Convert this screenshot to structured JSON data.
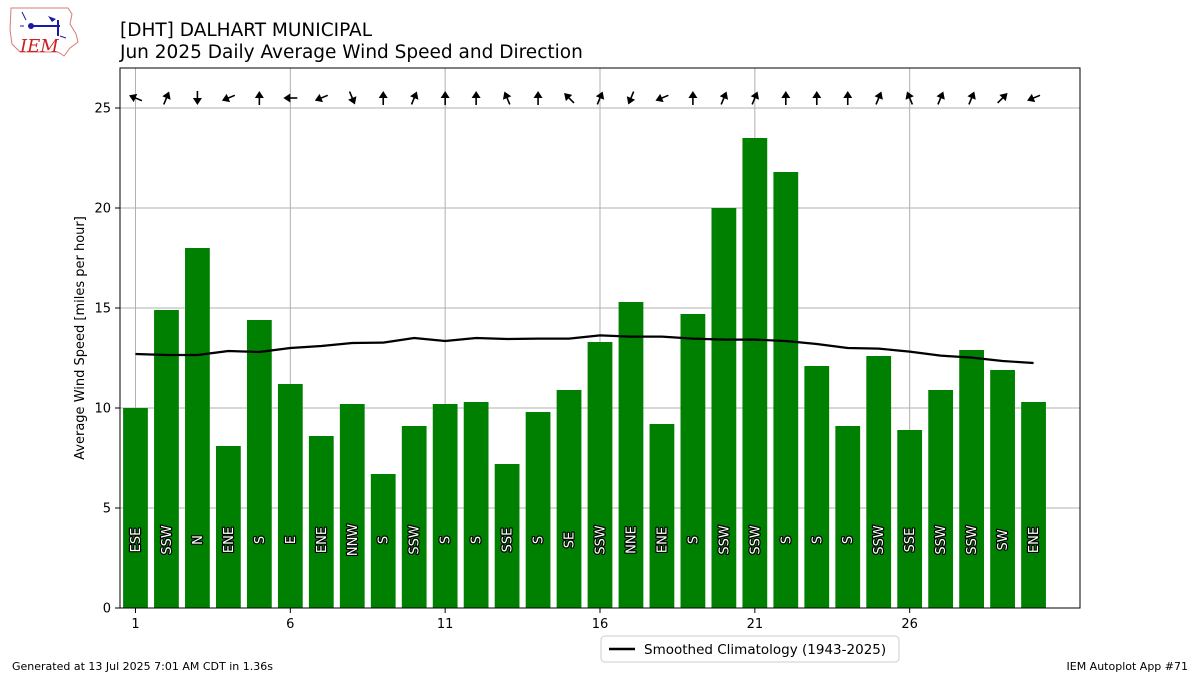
{
  "header": {
    "title_line1": "[DHT] DALHART MUNICIPAL",
    "title_line2": "Jun 2025 Daily Average Wind Speed and Direction"
  },
  "logo": {
    "text": "IEM",
    "icon": "iem-weather-station-logo-icon"
  },
  "footer": {
    "generated": "Generated at 13 Jul 2025 7:01 AM CDT in 1.36s",
    "app": "IEM Autoplot App #71"
  },
  "colors": {
    "bar": "#008000",
    "climatology": "#000000",
    "grid": "#b0b0b0"
  },
  "chart_data": {
    "type": "bar",
    "title": "[DHT] DALHART MUNICIPAL\nJun 2025 Daily Average Wind Speed and Direction",
    "ylabel": "Average Wind Speed [miles per hour]",
    "xlabel": "",
    "xlim": [
      0.5,
      31.5
    ],
    "ylim": [
      0,
      27
    ],
    "xticks": [
      1,
      6,
      11,
      16,
      21,
      26
    ],
    "yticks": [
      0,
      5,
      10,
      15,
      20,
      25
    ],
    "grid": true,
    "days": [
      1,
      2,
      3,
      4,
      5,
      6,
      7,
      8,
      9,
      10,
      11,
      12,
      13,
      14,
      15,
      16,
      17,
      18,
      19,
      20,
      21,
      22,
      23,
      24,
      25,
      26,
      27,
      28,
      29,
      30
    ],
    "speed": [
      10.0,
      14.9,
      18.0,
      8.1,
      14.4,
      11.2,
      8.6,
      10.2,
      6.7,
      9.1,
      10.2,
      10.3,
      7.2,
      9.8,
      10.9,
      13.3,
      15.3,
      9.2,
      14.7,
      20.0,
      23.5,
      21.8,
      12.1,
      9.1,
      12.6,
      8.9,
      10.9,
      12.9,
      11.9,
      10.3
    ],
    "direction": [
      "ESE",
      "SSW",
      "N",
      "ENE",
      "S",
      "E",
      "ENE",
      "NNW",
      "S",
      "SSW",
      "S",
      "S",
      "SSE",
      "S",
      "SE",
      "SSW",
      "NNE",
      "ENE",
      "S",
      "SSW",
      "SSW",
      "S",
      "S",
      "S",
      "SSW",
      "SSE",
      "SSW",
      "SSW",
      "SW",
      "ENE"
    ],
    "series": [
      {
        "name": "Smoothed Climatology (1943-2025)",
        "type": "line",
        "x": [
          1,
          2,
          3,
          4,
          5,
          6,
          7,
          8,
          9,
          10,
          11,
          12,
          13,
          14,
          15,
          16,
          17,
          18,
          19,
          20,
          21,
          22,
          23,
          24,
          25,
          26,
          27,
          28,
          29,
          30
        ],
        "values": [
          12.7,
          12.65,
          12.65,
          12.85,
          12.8,
          13.0,
          13.1,
          13.25,
          13.27,
          13.5,
          13.35,
          13.5,
          13.45,
          13.47,
          13.47,
          13.63,
          13.57,
          13.57,
          13.47,
          13.42,
          13.42,
          13.35,
          13.2,
          13.0,
          12.97,
          12.82,
          12.62,
          12.52,
          12.35,
          12.25
        ]
      }
    ],
    "legend": {
      "position": "bottom-center"
    }
  }
}
